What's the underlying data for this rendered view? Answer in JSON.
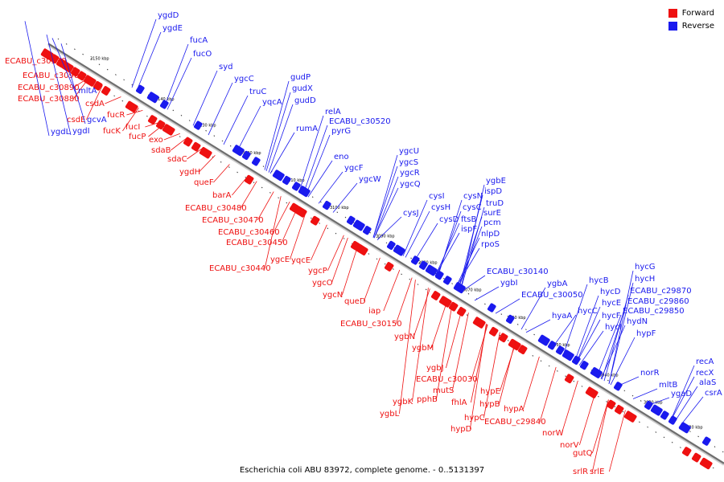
{
  "colors": {
    "forward": "#ee1111",
    "reverse": "#1a1aee",
    "backbone": "#888888"
  },
  "legend": {
    "forward": "Forward",
    "reverse": "Reverse"
  },
  "caption": "Escherichia coli ABU 83972, complete genome. - 0..5131397",
  "tick_labels": [
    "3150 kbp",
    "3140 kbp",
    "3130 kbp",
    "3120 kbp",
    "3110 kbp",
    "3100 kbp",
    "3090 kbp",
    "3080 kbp",
    "3070 kbp",
    "3060 kbp",
    "3050 kbp",
    "3040 kbp",
    "3030 kbp",
    "3020 kbp"
  ],
  "forward_labels": [
    "ECABU_c30930",
    "ECABU_c30900",
    "ECABU_c30890",
    "ECABU_c30880",
    "csdA",
    "csdE",
    "fucR",
    "fucK",
    "fucI",
    "fucP",
    "exo",
    "sdaB",
    "sdaC",
    "ygdH",
    "queF",
    "barA",
    "ECABU_c30480",
    "ECABU_c30470",
    "ECABU_c30460",
    "ECABU_c30450",
    "ygcE",
    "yqcE",
    "ECABU_c30440",
    "ygcP",
    "ygcO",
    "ygcN",
    "queD",
    "iap",
    "ECABU_c30150",
    "ygbN",
    "ygbM",
    "ygbJ",
    "ECABU_c30030",
    "mutS",
    "pphB",
    "ygbK",
    "ygbL",
    "fhlA",
    "hypE",
    "hypB",
    "hypC",
    "hypD",
    "hypA",
    "ECABU_c29840",
    "norW",
    "norV",
    "gutQ",
    "srlR",
    "srlE"
  ],
  "reverse_labels": [
    "ygdD",
    "ygdE",
    "fucA",
    "fucO",
    "syd",
    "mltA",
    "gcvA",
    "ygdI",
    "ygdL",
    "ygcC",
    "truC",
    "yqcA",
    "gudP",
    "gudX",
    "gudD",
    "relA",
    "ECABU_c30520",
    "pyrG",
    "rumA",
    "eno",
    "ygcF",
    "ygcW",
    "ygcU",
    "ygcS",
    "ygcR",
    "ygcQ",
    "cysI",
    "cysH",
    "cysJ",
    "ygbE",
    "ispD",
    "cysN",
    "truD",
    "cysC",
    "surE",
    "cysD",
    "ftsB",
    "pcm",
    "ispF",
    "nlpD",
    "rpoS",
    "ECABU_c30140",
    "ygbI",
    "ygbA",
    "ECABU_c30050",
    "hycB",
    "hycG",
    "hycH",
    "hycD",
    "ECABU_c29870",
    "hycE",
    "ECABU_c29860",
    "hycF",
    "ECABU_c29850",
    "hycC",
    "hyaA",
    "hycI",
    "hydN",
    "hypF",
    "norR",
    "mltB",
    "recA",
    "recX",
    "alaS",
    "ygaD",
    "csrA"
  ]
}
